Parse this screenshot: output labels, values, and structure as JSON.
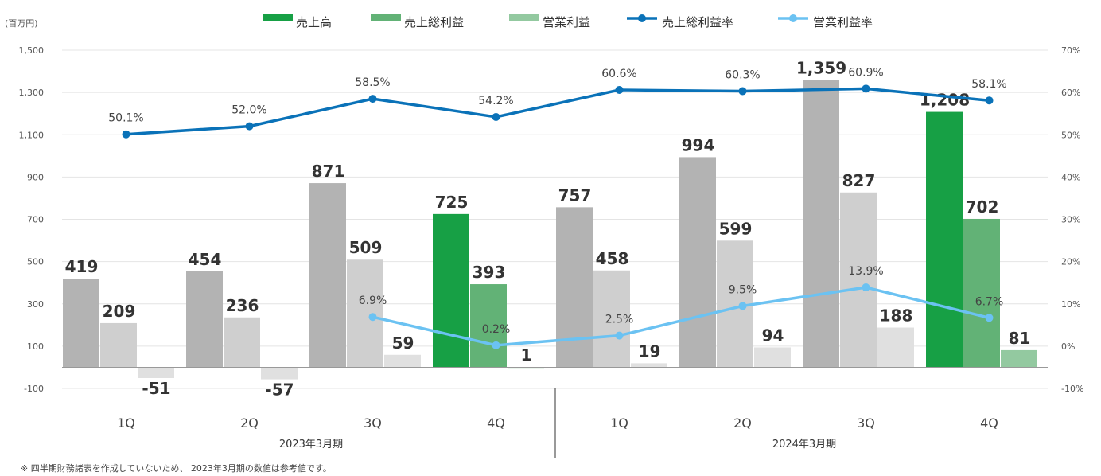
{
  "y_unit": "(百万円)",
  "footnote": "※ 四半期財務諸表を作成していないため、 2023年3月期の数値は参考値です。",
  "periods": [
    "2023年3月期",
    "2024年3月期"
  ],
  "colors": {
    "sales_inactive": "#b3b3b3",
    "gross_inactive": "#cfcfcf",
    "op_inactive": "#e0e0e0",
    "sales_active": "#17a045",
    "gross_active": "#62b276",
    "op_active": "#93c9a0",
    "gross_margin_line": "#0a72b8",
    "op_margin_line": "#6bc2f2"
  },
  "chart_data": {
    "type": "bar",
    "categories": [
      "1Q",
      "2Q",
      "3Q",
      "4Q",
      "1Q",
      "2Q",
      "3Q",
      "4Q"
    ],
    "highlighted_indices": [
      3,
      7
    ],
    "series": [
      {
        "name": "売上高",
        "kind": "bar",
        "values": [
          419,
          454,
          871,
          725,
          757,
          994,
          1359,
          1208
        ],
        "labels": [
          "419",
          "454",
          "871",
          "725",
          "757",
          "994",
          "1,359",
          "1,208"
        ]
      },
      {
        "name": "売上総利益",
        "kind": "bar",
        "values": [
          209,
          236,
          509,
          393,
          458,
          599,
          827,
          702
        ],
        "labels": [
          "209",
          "236",
          "509",
          "393",
          "458",
          "599",
          "827",
          "702"
        ]
      },
      {
        "name": "営業利益",
        "kind": "bar",
        "values": [
          -51,
          -57,
          59,
          1,
          19,
          94,
          188,
          81
        ],
        "labels": [
          "-51",
          "-57",
          "59",
          "1",
          "19",
          "94",
          "188",
          "81"
        ]
      },
      {
        "name": "売上総利益率",
        "kind": "line",
        "axis": "right",
        "values": [
          50.1,
          52.0,
          58.5,
          54.2,
          60.6,
          60.3,
          60.9,
          58.1
        ],
        "labels": [
          "50.1%",
          "52.0%",
          "58.5%",
          "54.2%",
          "60.6%",
          "60.3%",
          "60.9%",
          "58.1%"
        ]
      },
      {
        "name": "営業利益率",
        "kind": "line",
        "axis": "right",
        "values": [
          null,
          null,
          6.9,
          0.2,
          2.5,
          9.5,
          13.9,
          6.7
        ],
        "labels": [
          "",
          "",
          "6.9%",
          "0.2%",
          "2.5%",
          "9.5%",
          "13.9%",
          "6.7%"
        ]
      }
    ],
    "y_left": {
      "min": -100,
      "max": 1500,
      "ticks": [
        "-100",
        "100",
        "300",
        "500",
        "700",
        "900",
        "1,100",
        "1,300",
        "1,500"
      ]
    },
    "y_right": {
      "min": -10,
      "max": 70,
      "ticks": [
        "-10%",
        "0%",
        "10%",
        "20%",
        "30%",
        "40%",
        "50%",
        "60%",
        "70%"
      ]
    },
    "legend_position": "top"
  }
}
